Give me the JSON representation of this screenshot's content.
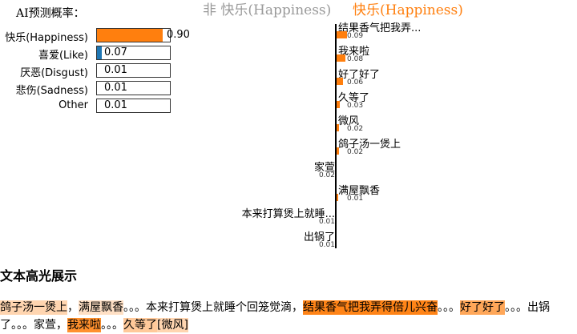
{
  "probability_panel": {
    "title": "AI预测概率：",
    "rows": [
      {
        "label": "快乐(Happiness)",
        "value": 0.9,
        "value_text": "0.90",
        "color": "#ff7f0e"
      },
      {
        "label": "喜爱(Like)",
        "value": 0.07,
        "value_text": "0.07",
        "color": "#1f77b4"
      },
      {
        "label": "厌恶(Disgust)",
        "value": 0.01,
        "value_text": "0.01",
        "color": ""
      },
      {
        "label": "悲伤(Sadness)",
        "value": 0.01,
        "value_text": "0.01",
        "color": ""
      },
      {
        "label": "Other",
        "value": 0.01,
        "value_text": "0.01",
        "color": ""
      }
    ]
  },
  "word_importance": {
    "negative_title": "非 快乐(Happiness)",
    "positive_title": "快乐(Happiness)",
    "positive_color": "#ff7f0e",
    "negative_color": "#9a9a9a",
    "items": [
      {
        "word": "结果香气把我弄...",
        "score": 0.09,
        "score_text": "0.09",
        "side": "positive"
      },
      {
        "word": "我来啦",
        "score": 0.08,
        "score_text": "0.08",
        "side": "positive"
      },
      {
        "word": "好了好了",
        "score": 0.06,
        "score_text": "0.06",
        "side": "positive"
      },
      {
        "word": "久等了",
        "score": 0.03,
        "score_text": "0.03",
        "side": "positive"
      },
      {
        "word": "微风",
        "score": 0.02,
        "score_text": "0.02",
        "side": "positive"
      },
      {
        "word": "鸽子汤一煲上",
        "score": 0.02,
        "score_text": "0.02",
        "side": "positive"
      },
      {
        "word": "家萱",
        "score": 0.02,
        "score_text": "0.02",
        "side": "negative"
      },
      {
        "word": "满屋飘香",
        "score": 0.01,
        "score_text": "0.01",
        "side": "positive"
      },
      {
        "word": "本来打算煲上就睡...",
        "score": 0.01,
        "score_text": "0.01",
        "side": "negative"
      },
      {
        "word": "出锅了",
        "score": 0.01,
        "score_text": "0.01",
        "side": "negative"
      }
    ]
  },
  "highlight": {
    "title": "文本高光展示",
    "segments": [
      {
        "text": "鸽子汤一煲上",
        "level": 0.02
      },
      {
        "text": "，",
        "level": 0
      },
      {
        "text": "满屋飘香",
        "level": 0.01
      },
      {
        "text": "。。。",
        "level": 0
      },
      {
        "text": "本来打算煲上就睡个回笼觉滴",
        "level": 0
      },
      {
        "text": "，",
        "level": 0
      },
      {
        "text": "结果香气把我弄得倍儿兴奋",
        "level": 0.09
      },
      {
        "text": "。。。",
        "level": 0
      },
      {
        "text": "好了好了",
        "level": 0.06
      },
      {
        "text": "。。。",
        "level": 0
      },
      {
        "text": "出锅了",
        "level": 0
      },
      {
        "text": "。。。",
        "level": 0
      },
      {
        "text": "家萱",
        "level": 0
      },
      {
        "text": "，",
        "level": 0
      },
      {
        "text": "我来啦",
        "level": 0.08
      },
      {
        "text": "。。。",
        "level": 0
      },
      {
        "text": "久等了",
        "level": 0.03
      },
      {
        "text": "[微风]",
        "level": 0.02
      }
    ]
  }
}
